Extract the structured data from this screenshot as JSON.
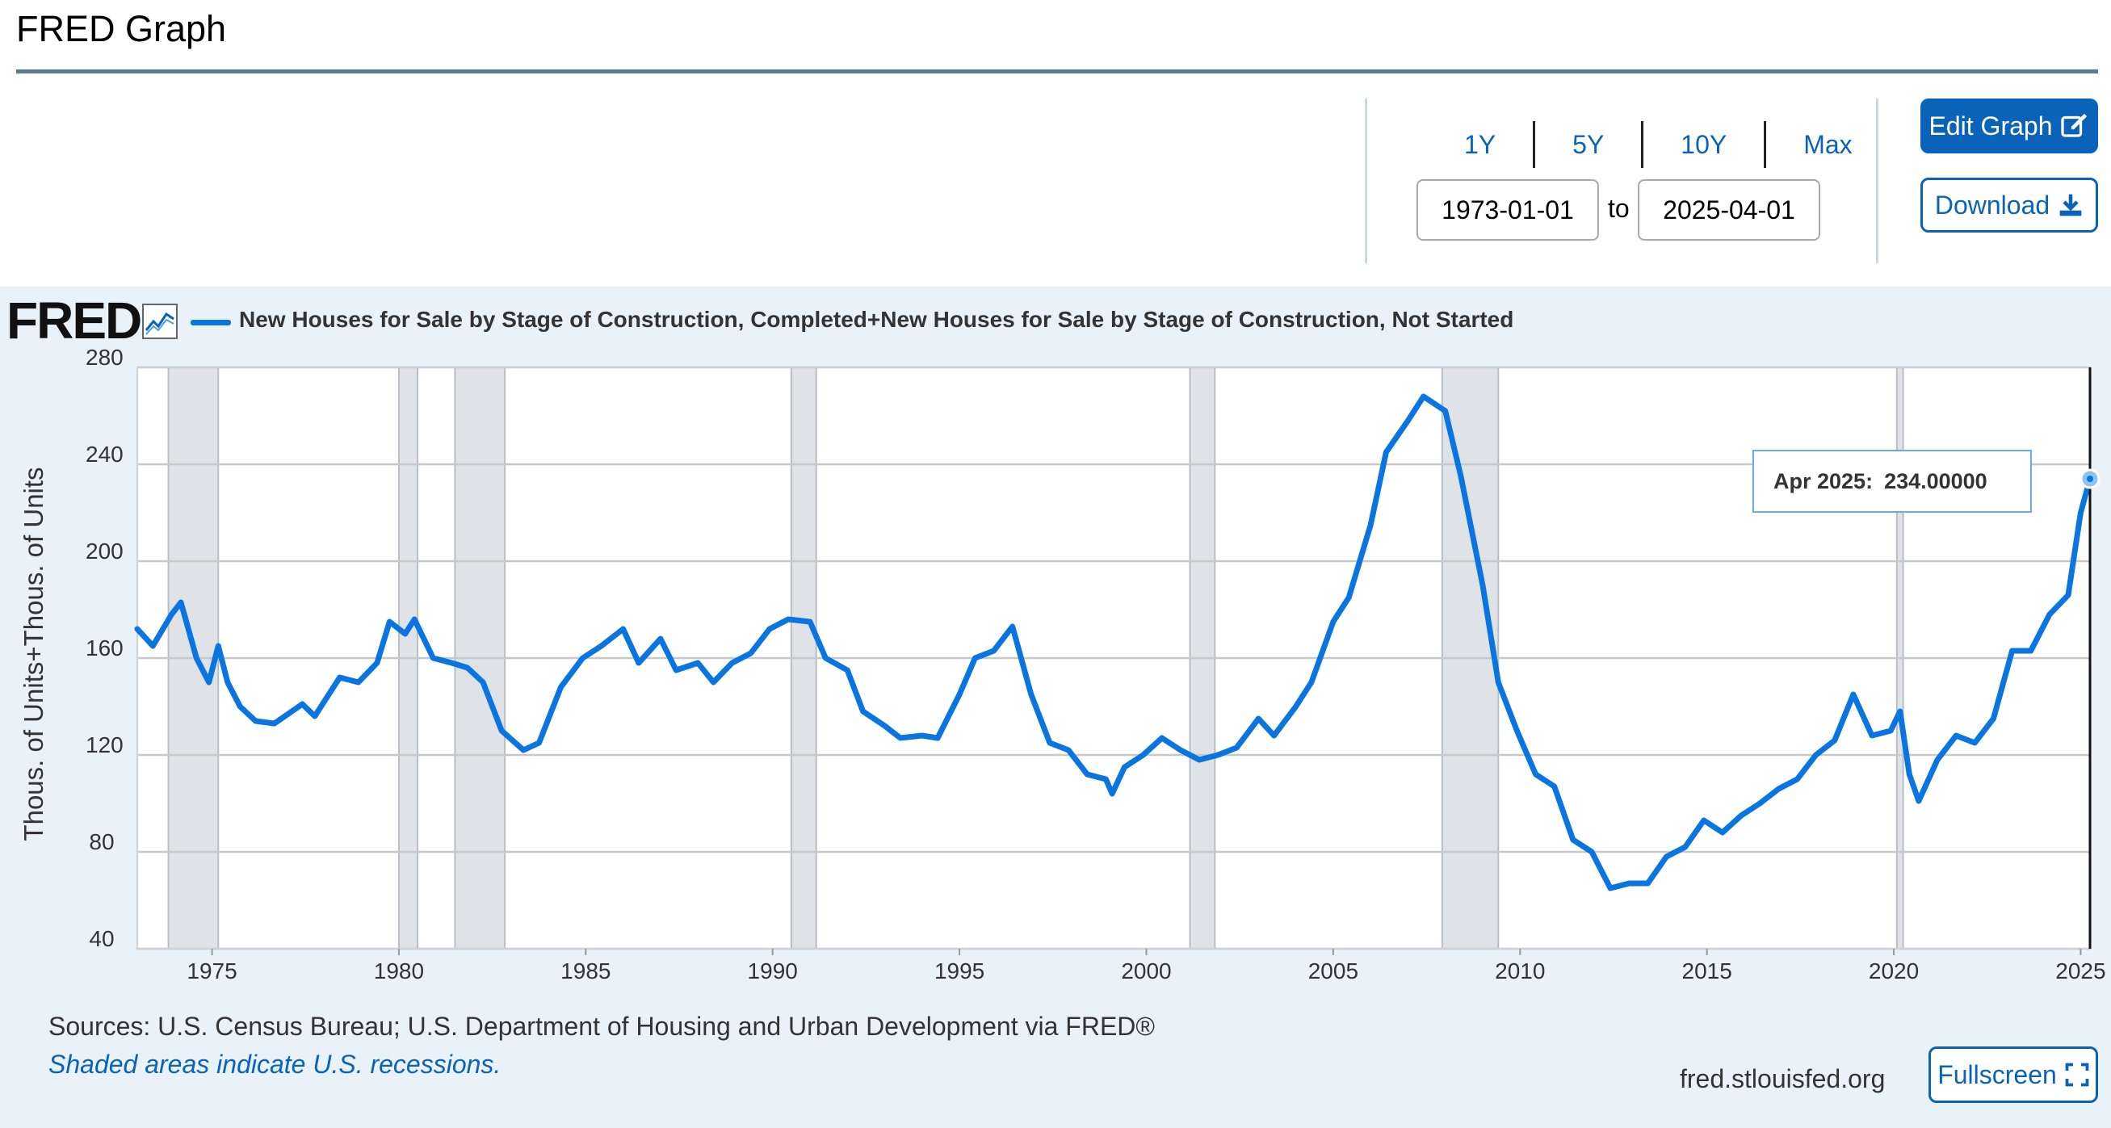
{
  "page": {
    "title": "FRED Graph"
  },
  "controls": {
    "ranges": [
      "1Y",
      "5Y",
      "10Y",
      "Max"
    ],
    "start_date": "1973-01-01",
    "to_label": "to",
    "end_date": "2025-04-01",
    "edit_label": "Edit Graph",
    "download_label": "Download"
  },
  "logo": {
    "text": "FRED"
  },
  "footer": {
    "sources": "Sources: U.S. Census Bureau; U.S. Department of Housing and Urban Development via FRED®",
    "recessions": "Shaded areas indicate U.S. recessions.",
    "site": "fred.stlouisfed.org",
    "fullscreen_label": "Fullscreen"
  },
  "tooltip": {
    "date": "Apr 2025:",
    "value": "234.00000"
  },
  "colors": {
    "line": "#0a75e0",
    "recession": "#dfe3e8",
    "accent": "#0a63b8"
  },
  "chart_data": {
    "type": "line",
    "title": "",
    "legend": "New Houses for Sale by Stage of Construction, Completed+New Houses for Sale by Stage of Construction, Not Started",
    "ylabel": "Thous. of Units+Thous. of Units",
    "xlabel": "",
    "ylim": [
      40,
      280
    ],
    "yticks": [
      40,
      80,
      120,
      160,
      200,
      240,
      280
    ],
    "xlim": [
      "1973-01",
      "2025-04"
    ],
    "xticks": [
      "1975",
      "1980",
      "1985",
      "1990",
      "1995",
      "2000",
      "2005",
      "2010",
      "2015",
      "2020",
      "2025"
    ],
    "grid": true,
    "recessions": [
      [
        "1973-11",
        "1975-03"
      ],
      [
        "1980-01",
        "1980-07"
      ],
      [
        "1981-07",
        "1982-11"
      ],
      [
        "1990-07",
        "1991-03"
      ],
      [
        "2001-03",
        "2001-11"
      ],
      [
        "2007-12",
        "2009-06"
      ],
      [
        "2020-02",
        "2020-04"
      ]
    ],
    "series": [
      {
        "name": "New Houses for Sale by Stage of Construction, Completed+New Houses for Sale by Stage of Construction, Not Started",
        "points": [
          [
            "1973-01",
            172
          ],
          [
            "1973-06",
            165
          ],
          [
            "1973-12",
            178
          ],
          [
            "1974-03",
            183
          ],
          [
            "1974-08",
            160
          ],
          [
            "1974-12",
            150
          ],
          [
            "1975-03",
            165
          ],
          [
            "1975-06",
            150
          ],
          [
            "1975-10",
            140
          ],
          [
            "1976-03",
            134
          ],
          [
            "1976-09",
            133
          ],
          [
            "1977-06",
            141
          ],
          [
            "1977-10",
            136
          ],
          [
            "1978-06",
            152
          ],
          [
            "1978-12",
            150
          ],
          [
            "1979-06",
            158
          ],
          [
            "1979-10",
            175
          ],
          [
            "1980-03",
            170
          ],
          [
            "1980-06",
            176
          ],
          [
            "1980-12",
            160
          ],
          [
            "1981-06",
            158
          ],
          [
            "1981-11",
            156
          ],
          [
            "1982-04",
            150
          ],
          [
            "1982-10",
            130
          ],
          [
            "1983-05",
            122
          ],
          [
            "1983-10",
            125
          ],
          [
            "1984-05",
            148
          ],
          [
            "1984-12",
            160
          ],
          [
            "1985-06",
            165
          ],
          [
            "1986-01",
            172
          ],
          [
            "1986-06",
            158
          ],
          [
            "1987-01",
            168
          ],
          [
            "1987-06",
            155
          ],
          [
            "1988-01",
            158
          ],
          [
            "1988-06",
            150
          ],
          [
            "1988-12",
            158
          ],
          [
            "1989-06",
            162
          ],
          [
            "1989-12",
            172
          ],
          [
            "1990-06",
            176
          ],
          [
            "1991-01",
            175
          ],
          [
            "1991-06",
            160
          ],
          [
            "1992-01",
            155
          ],
          [
            "1992-06",
            138
          ],
          [
            "1993-01",
            132
          ],
          [
            "1993-06",
            127
          ],
          [
            "1994-01",
            128
          ],
          [
            "1994-06",
            127
          ],
          [
            "1995-01",
            145
          ],
          [
            "1995-06",
            160
          ],
          [
            "1995-12",
            163
          ],
          [
            "1996-06",
            173
          ],
          [
            "1996-12",
            145
          ],
          [
            "1997-06",
            125
          ],
          [
            "1997-12",
            122
          ],
          [
            "1998-06",
            112
          ],
          [
            "1998-12",
            110
          ],
          [
            "1999-02",
            104
          ],
          [
            "1999-06",
            115
          ],
          [
            "1999-12",
            120
          ],
          [
            "2000-06",
            127
          ],
          [
            "2000-12",
            122
          ],
          [
            "2001-06",
            118
          ],
          [
            "2001-12",
            120
          ],
          [
            "2002-06",
            123
          ],
          [
            "2003-01",
            135
          ],
          [
            "2003-06",
            128
          ],
          [
            "2004-01",
            140
          ],
          [
            "2004-06",
            150
          ],
          [
            "2005-01",
            175
          ],
          [
            "2005-06",
            185
          ],
          [
            "2006-01",
            215
          ],
          [
            "2006-06",
            245
          ],
          [
            "2007-01",
            258
          ],
          [
            "2007-06",
            268
          ],
          [
            "2008-01",
            262
          ],
          [
            "2008-06",
            235
          ],
          [
            "2009-01",
            190
          ],
          [
            "2009-06",
            150
          ],
          [
            "2009-12",
            130
          ],
          [
            "2010-06",
            112
          ],
          [
            "2010-12",
            107
          ],
          [
            "2011-06",
            85
          ],
          [
            "2011-12",
            80
          ],
          [
            "2012-06",
            65
          ],
          [
            "2012-12",
            67
          ],
          [
            "2013-06",
            67
          ],
          [
            "2013-12",
            78
          ],
          [
            "2014-06",
            82
          ],
          [
            "2014-12",
            93
          ],
          [
            "2015-06",
            88
          ],
          [
            "2015-12",
            95
          ],
          [
            "2016-06",
            100
          ],
          [
            "2016-12",
            106
          ],
          [
            "2017-06",
            110
          ],
          [
            "2017-12",
            120
          ],
          [
            "2018-06",
            126
          ],
          [
            "2018-12",
            145
          ],
          [
            "2019-06",
            128
          ],
          [
            "2019-12",
            130
          ],
          [
            "2020-03",
            138
          ],
          [
            "2020-06",
            112
          ],
          [
            "2020-09",
            101
          ],
          [
            "2021-03",
            118
          ],
          [
            "2021-09",
            128
          ],
          [
            "2022-03",
            125
          ],
          [
            "2022-09",
            135
          ],
          [
            "2023-03",
            163
          ],
          [
            "2023-09",
            163
          ],
          [
            "2024-03",
            178
          ],
          [
            "2024-09",
            186
          ],
          [
            "2025-01",
            220
          ],
          [
            "2025-04",
            234
          ]
        ]
      }
    ]
  }
}
